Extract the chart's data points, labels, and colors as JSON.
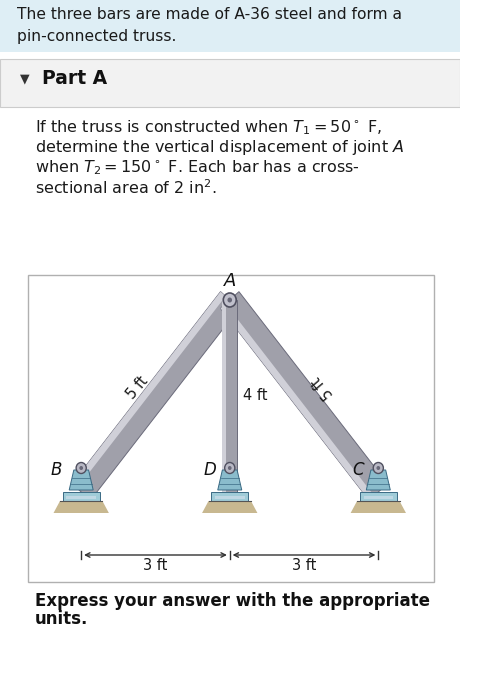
{
  "bg_color": "#ffffff",
  "top_box_color": "#deeef5",
  "top_box_text": "The three bars are made of A-36 steel and form a\npin-connected truss.",
  "part_box_color": "#f2f2f2",
  "part_box_border": "#cccccc",
  "part_label": "Part A",
  "part_triangle": "▼",
  "body_lines": [
    "If the truss is constructed when $T_1 = 50^\\circ$ F,",
    "determine the vertical displacement of joint $A$",
    "when $T_2 = 150^\\circ$ F. Each bar has a cross-",
    "sectional area of 2 in$^2$."
  ],
  "diagram_box_border": "#b8b8b8",
  "bar_color_main": "#a8a8b0",
  "bar_color_light": "#d0d0d8",
  "bar_color_dark": "#787888",
  "support_body": "#8abccc",
  "support_base": "#a0ccd8",
  "ground_color": "#c8b890",
  "dim_arrows_color": "#333333",
  "bottom_text_line1": "Express your answer with the appropriate",
  "bottom_text_line2": "units."
}
